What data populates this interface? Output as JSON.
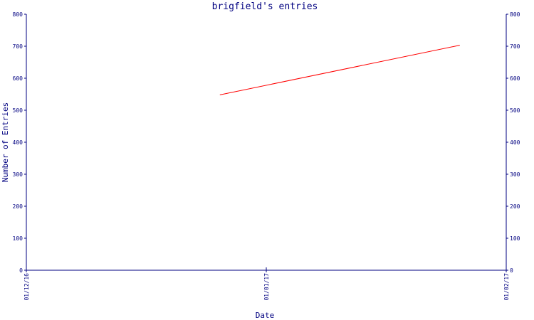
{
  "chart_data": {
    "type": "line",
    "title": "brigfield's entries",
    "xlabel": "Date",
    "ylabel": "Number of Entries",
    "x_ticks": [
      "01/12/16",
      "01/01/17",
      "01/02/17"
    ],
    "ylim": [
      0,
      800
    ],
    "y_ticks": [
      0,
      100,
      200,
      300,
      400,
      500,
      600,
      700,
      800
    ],
    "y_ticks_right": true,
    "grid": false,
    "series": [
      {
        "color": "#ff0000",
        "points": [
          {
            "x": "2016-12-26",
            "y": 548
          },
          {
            "x": "2017-01-26",
            "y": 703
          }
        ]
      }
    ]
  }
}
